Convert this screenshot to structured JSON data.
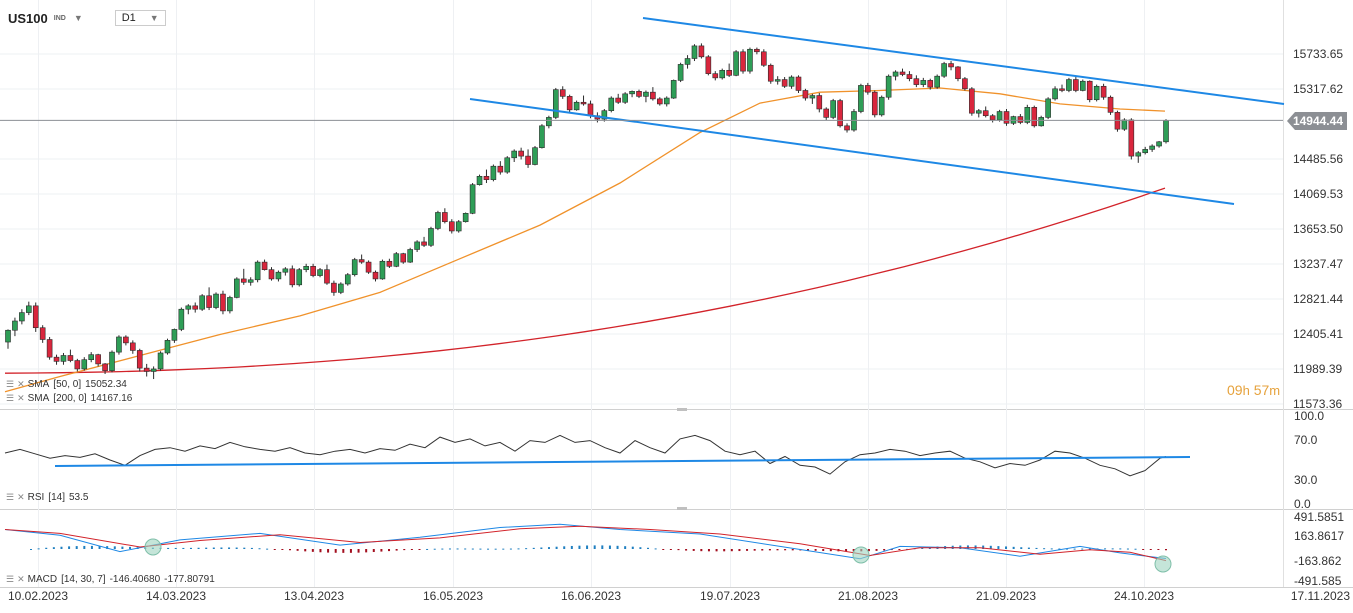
{
  "header": {
    "symbol": "US100",
    "symbol_type": "IND",
    "timeframe": "D1"
  },
  "last_price_tag": "14944.44",
  "countdown": {
    "hours": "09",
    "h_unit": "h",
    "minutes": "57",
    "m_unit": "m"
  },
  "indicators": {
    "sma50": {
      "label": "SMA",
      "params": "[50, 0]",
      "value": "15052.34"
    },
    "sma200": {
      "label": "SMA",
      "params": "[200, 0]",
      "value": "14167.16"
    },
    "rsi": {
      "label": "RSI",
      "params": "[14]",
      "value": "53.5"
    },
    "macd": {
      "label": "MACD",
      "params": "[14, 30, 7]",
      "value1": "-146.40680",
      "value2": "-177.80791"
    }
  },
  "colors": {
    "up": "#2e9e57",
    "down": "#d9263d",
    "sma50": "#f0922b",
    "sma200": "#d2232a",
    "trend": "#1e88e5",
    "rsi": "#333333",
    "macd_line": "#1e88e5",
    "signal_line": "#d2232a"
  },
  "chart_data": [
    {
      "type": "candlestick",
      "title": "US100",
      "price_axis_ticks": [
        "15733.65",
        "15317.62",
        "14485.56",
        "14069.53",
        "13653.50",
        "13237.47",
        "12821.44",
        "12405.41",
        "11989.39",
        "11573.36"
      ],
      "date_axis_ticks": [
        "10.02.2023",
        "14.03.2023",
        "13.04.2023",
        "16.05.2023",
        "16.06.2023",
        "19.07.2023",
        "21.08.2023",
        "21.09.2023",
        "24.10.2023",
        "17.11.2023"
      ],
      "last_price": 14944.44,
      "ohlc_approx": [
        [
          12310,
          12460,
          12230,
          12450
        ],
        [
          12450,
          12600,
          12380,
          12560
        ],
        [
          12560,
          12700,
          12520,
          12660
        ],
        [
          12660,
          12790,
          12630,
          12740
        ],
        [
          12740,
          12780,
          12430,
          12480
        ],
        [
          12480,
          12510,
          12300,
          12340
        ],
        [
          12340,
          12370,
          12100,
          12130
        ],
        [
          12130,
          12160,
          12040,
          12080
        ],
        [
          12080,
          12180,
          12040,
          12150
        ],
        [
          12150,
          12220,
          12070,
          12090
        ],
        [
          12090,
          12110,
          11960,
          11990
        ],
        [
          11990,
          12130,
          11970,
          12100
        ],
        [
          12100,
          12190,
          12070,
          12160
        ],
        [
          12160,
          12170,
          12020,
          12050
        ],
        [
          12050,
          12060,
          11930,
          11970
        ],
        [
          11970,
          12210,
          11950,
          12190
        ],
        [
          12190,
          12390,
          12160,
          12370
        ],
        [
          12370,
          12390,
          12270,
          12300
        ],
        [
          12300,
          12330,
          12170,
          12210
        ],
        [
          12210,
          12230,
          11960,
          12000
        ],
        [
          12000,
          12050,
          11900,
          11960
        ],
        [
          11960,
          12020,
          11870,
          11990
        ],
        [
          11990,
          12200,
          11970,
          12180
        ],
        [
          12180,
          12350,
          12160,
          12330
        ],
        [
          12330,
          12470,
          12300,
          12460
        ],
        [
          12460,
          12720,
          12440,
          12700
        ],
        [
          12700,
          12760,
          12640,
          12740
        ],
        [
          12740,
          12780,
          12660,
          12700
        ],
        [
          12700,
          12880,
          12680,
          12860
        ],
        [
          12860,
          12960,
          12690,
          12720
        ],
        [
          12720,
          12900,
          12700,
          12880
        ],
        [
          12880,
          12920,
          12640,
          12680
        ],
        [
          12680,
          12860,
          12650,
          12840
        ],
        [
          12840,
          13080,
          12830,
          13060
        ],
        [
          13060,
          13180,
          12990,
          13020
        ],
        [
          13020,
          13080,
          12980,
          13050
        ],
        [
          13050,
          13280,
          13020,
          13260
        ],
        [
          13260,
          13290,
          13160,
          13170
        ],
        [
          13170,
          13200,
          13040,
          13060
        ],
        [
          13060,
          13160,
          13030,
          13140
        ],
        [
          13140,
          13200,
          13100,
          13180
        ],
        [
          13180,
          13220,
          12960,
          12990
        ],
        [
          12990,
          13190,
          12970,
          13170
        ],
        [
          13170,
          13240,
          13140,
          13210
        ],
        [
          13210,
          13240,
          13080,
          13100
        ],
        [
          13100,
          13190,
          13080,
          13170
        ],
        [
          13170,
          13230,
          12990,
          13010
        ],
        [
          13010,
          13040,
          12860,
          12900
        ],
        [
          12900,
          13020,
          12880,
          13000
        ],
        [
          13000,
          13130,
          12980,
          13110
        ],
        [
          13110,
          13310,
          13090,
          13290
        ],
        [
          13290,
          13350,
          13240,
          13260
        ],
        [
          13260,
          13280,
          13120,
          13140
        ],
        [
          13140,
          13160,
          13030,
          13060
        ],
        [
          13060,
          13290,
          13050,
          13270
        ],
        [
          13270,
          13300,
          13190,
          13210
        ],
        [
          13210,
          13380,
          13200,
          13360
        ],
        [
          13360,
          13370,
          13240,
          13260
        ],
        [
          13260,
          13430,
          13250,
          13410
        ],
        [
          13410,
          13520,
          13380,
          13500
        ],
        [
          13500,
          13560,
          13440,
          13460
        ],
        [
          13460,
          13680,
          13440,
          13660
        ],
        [
          13660,
          13870,
          13640,
          13850
        ],
        [
          13850,
          13900,
          13720,
          13740
        ],
        [
          13740,
          13770,
          13600,
          13630
        ],
        [
          13630,
          13760,
          13610,
          13740
        ],
        [
          13740,
          13850,
          13730,
          13840
        ],
        [
          13840,
          14200,
          13830,
          14180
        ],
        [
          14180,
          14300,
          14170,
          14280
        ],
        [
          14280,
          14360,
          14200,
          14240
        ],
        [
          14240,
          14420,
          14220,
          14400
        ],
        [
          14400,
          14460,
          14300,
          14330
        ],
        [
          14330,
          14520,
          14310,
          14500
        ],
        [
          14500,
          14600,
          14450,
          14580
        ],
        [
          14580,
          14620,
          14480,
          14520
        ],
        [
          14520,
          14600,
          14380,
          14420
        ],
        [
          14420,
          14640,
          14410,
          14620
        ],
        [
          14620,
          14900,
          14610,
          14880
        ],
        [
          14880,
          15000,
          14850,
          14980
        ],
        [
          14980,
          15330,
          14960,
          15310
        ],
        [
          15310,
          15350,
          15200,
          15230
        ],
        [
          15230,
          15250,
          15040,
          15070
        ],
        [
          15070,
          15180,
          15060,
          15160
        ],
        [
          15160,
          15240,
          15120,
          15140
        ],
        [
          15140,
          15180,
          14970,
          15000
        ],
        [
          15000,
          15040,
          14920,
          14960
        ],
        [
          14960,
          15080,
          14930,
          15060
        ],
        [
          15060,
          15230,
          15040,
          15210
        ],
        [
          15210,
          15260,
          15140,
          15160
        ],
        [
          15160,
          15280,
          15140,
          15260
        ],
        [
          15260,
          15300,
          15220,
          15290
        ],
        [
          15290,
          15310,
          15210,
          15230
        ],
        [
          15230,
          15300,
          15160,
          15280
        ],
        [
          15280,
          15340,
          15180,
          15200
        ],
        [
          15200,
          15220,
          15120,
          15140
        ],
        [
          15140,
          15230,
          15110,
          15210
        ],
        [
          15210,
          15430,
          15200,
          15420
        ],
        [
          15420,
          15630,
          15400,
          15610
        ],
        [
          15610,
          15720,
          15560,
          15680
        ],
        [
          15680,
          15850,
          15650,
          15830
        ],
        [
          15830,
          15860,
          15680,
          15700
        ],
        [
          15700,
          15720,
          15480,
          15500
        ],
        [
          15500,
          15530,
          15420,
          15450
        ],
        [
          15450,
          15560,
          15430,
          15540
        ],
        [
          15540,
          15620,
          15460,
          15480
        ],
        [
          15480,
          15780,
          15470,
          15760
        ],
        [
          15760,
          15790,
          15500,
          15530
        ],
        [
          15530,
          15810,
          15500,
          15790
        ],
        [
          15790,
          15810,
          15730,
          15760
        ],
        [
          15760,
          15790,
          15580,
          15600
        ],
        [
          15600,
          15620,
          15380,
          15410
        ],
        [
          15410,
          15470,
          15370,
          15430
        ],
        [
          15430,
          15460,
          15330,
          15350
        ],
        [
          15350,
          15480,
          15320,
          15460
        ],
        [
          15460,
          15480,
          15270,
          15300
        ],
        [
          15300,
          15320,
          15180,
          15210
        ],
        [
          15210,
          15260,
          15140,
          15240
        ],
        [
          15240,
          15270,
          15040,
          15080
        ],
        [
          15080,
          15100,
          14950,
          14980
        ],
        [
          14980,
          15200,
          14960,
          15180
        ],
        [
          15180,
          15200,
          14860,
          14880
        ],
        [
          14880,
          14910,
          14800,
          14830
        ],
        [
          14830,
          15080,
          14810,
          15050
        ],
        [
          15050,
          15380,
          15030,
          15360
        ],
        [
          15360,
          15390,
          15250,
          15280
        ],
        [
          15280,
          15300,
          14980,
          15010
        ],
        [
          15010,
          15240,
          14990,
          15220
        ],
        [
          15220,
          15490,
          15190,
          15470
        ],
        [
          15470,
          15540,
          15420,
          15520
        ],
        [
          15520,
          15560,
          15470,
          15490
        ],
        [
          15490,
          15530,
          15410,
          15440
        ],
        [
          15440,
          15480,
          15340,
          15370
        ],
        [
          15370,
          15450,
          15340,
          15420
        ],
        [
          15420,
          15440,
          15310,
          15340
        ],
        [
          15340,
          15490,
          15320,
          15470
        ],
        [
          15470,
          15640,
          15450,
          15620
        ],
        [
          15620,
          15650,
          15540,
          15580
        ],
        [
          15580,
          15590,
          15410,
          15440
        ],
        [
          15440,
          15460,
          15300,
          15320
        ],
        [
          15320,
          15340,
          15000,
          15030
        ],
        [
          15030,
          15080,
          14980,
          15060
        ],
        [
          15060,
          15110,
          14980,
          15000
        ],
        [
          15000,
          15020,
          14920,
          14950
        ],
        [
          14950,
          15070,
          14930,
          15050
        ],
        [
          15050,
          15080,
          14880,
          14910
        ],
        [
          14910,
          15000,
          14890,
          14990
        ],
        [
          14990,
          15020,
          14900,
          14920
        ],
        [
          14920,
          15130,
          14900,
          15100
        ],
        [
          15100,
          15120,
          14860,
          14880
        ],
        [
          14880,
          15000,
          14870,
          14980
        ],
        [
          14980,
          15220,
          14960,
          15200
        ],
        [
          15200,
          15350,
          15180,
          15320
        ],
        [
          15320,
          15370,
          15280,
          15300
        ],
        [
          15300,
          15450,
          15280,
          15430
        ],
        [
          15430,
          15460,
          15280,
          15300
        ],
        [
          15300,
          15430,
          15290,
          15410
        ],
        [
          15410,
          15420,
          15160,
          15190
        ],
        [
          15190,
          15370,
          15170,
          15350
        ],
        [
          15350,
          15380,
          15190,
          15220
        ],
        [
          15220,
          15240,
          15010,
          15040
        ],
        [
          15040,
          15060,
          14810,
          14840
        ],
        [
          14840,
          14970,
          14820,
          14950
        ],
        [
          14950,
          14970,
          14480,
          14520
        ],
        [
          14520,
          14580,
          14440,
          14560
        ],
        [
          14560,
          14630,
          14540,
          14600
        ],
        [
          14600,
          14660,
          14570,
          14640
        ],
        [
          14640,
          14700,
          14620,
          14690
        ],
        [
          14690,
          14960,
          14670,
          14944
        ]
      ]
    },
    {
      "type": "line",
      "name": "RSI",
      "params": "[14]",
      "value": 53.5,
      "ylim": [
        0,
        100
      ],
      "ticks": [
        "100.0",
        "70.0",
        "30.0",
        "0.0"
      ]
    },
    {
      "type": "line",
      "name": "MACD",
      "params": "[14, 30, 7]",
      "values": [
        -146.4068,
        -177.80791
      ],
      "ticks": [
        "491.5851",
        "163.8617",
        "-163.862",
        "-491.585"
      ]
    }
  ]
}
